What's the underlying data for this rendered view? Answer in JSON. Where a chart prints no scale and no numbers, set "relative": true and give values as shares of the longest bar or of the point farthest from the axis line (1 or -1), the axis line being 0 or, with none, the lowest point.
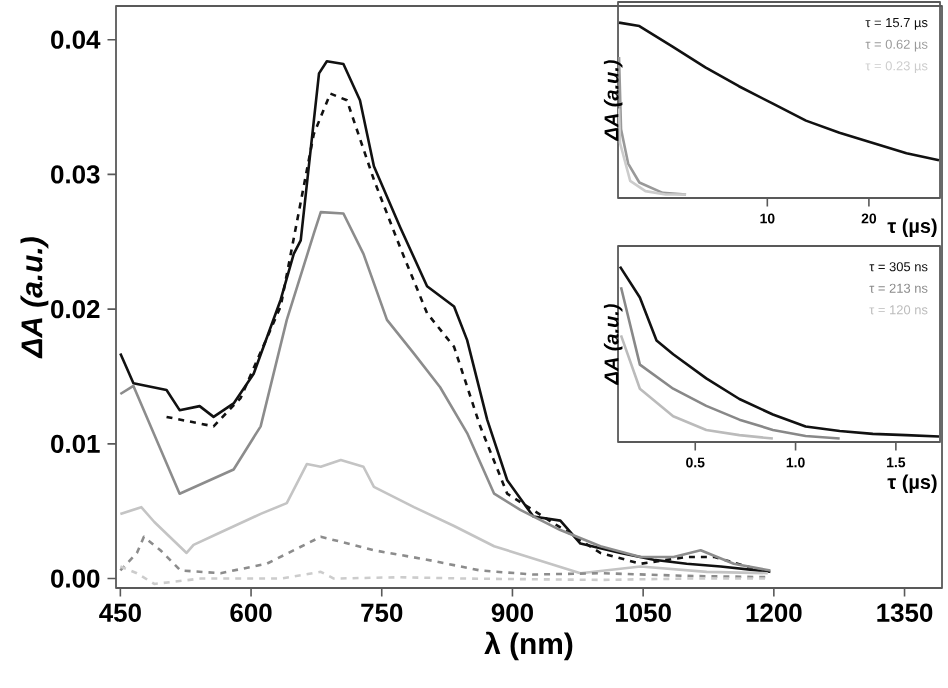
{
  "chart_data": [
    {
      "type": "line",
      "xlabel": "λ (nm)",
      "ylabel": "ΔA (a.u.)",
      "xlim": [
        445,
        1393
      ],
      "ylim": [
        -0.0007,
        0.0425
      ],
      "xticks": [
        450,
        600,
        750,
        900,
        1050,
        1200,
        1350
      ],
      "yticks": [
        {
          "value": 0,
          "label": "0.00"
        },
        {
          "value": 0.01,
          "label": "0.01"
        },
        {
          "value": 0.02,
          "label": "0.02"
        },
        {
          "value": 0.03,
          "label": "0.03"
        },
        {
          "value": 0.04,
          "label": "0.04"
        }
      ],
      "marker": "none",
      "series": [
        {
          "color": "#111111",
          "line_style": "solid",
          "x": [
            450,
            465,
            503,
            518,
            541,
            557,
            580,
            603,
            634,
            649,
            657,
            678,
            687,
            706,
            725,
            741,
            771,
            802,
            833,
            848,
            871,
            894,
            924,
            955,
            978,
            1024,
            1062,
            1100,
            1139,
            1196
          ],
          "values": [
            0.0167,
            0.0145,
            0.014,
            0.0125,
            0.0128,
            0.012,
            0.013,
            0.0152,
            0.0207,
            0.0241,
            0.0251,
            0.0375,
            0.0384,
            0.0382,
            0.0355,
            0.0306,
            0.0261,
            0.0217,
            0.0202,
            0.0177,
            0.0118,
            0.0073,
            0.0046,
            0.0043,
            0.0026,
            0.0019,
            0.0014,
            0.0011,
            0.0009,
            0.0005
          ]
        },
        {
          "color": "#111111",
          "line_style": "dashed",
          "x": [
            503,
            557,
            588,
            634,
            672,
            691,
            710,
            741,
            771,
            802,
            833,
            863,
            894,
            1001,
            1047,
            1100,
            1132,
            1169,
            1196
          ],
          "values": [
            0.012,
            0.0113,
            0.0134,
            0.0202,
            0.033,
            0.036,
            0.0355,
            0.0296,
            0.0246,
            0.0197,
            0.0172,
            0.0113,
            0.0063,
            0.0019,
            0.0011,
            0.0016,
            0.0016,
            0.0009,
            0.0004
          ]
        },
        {
          "color": "#8c8c8c",
          "line_style": "solid",
          "x": [
            450,
            465,
            518,
            549,
            580,
            611,
            641,
            672,
            680,
            706,
            729,
            756,
            787,
            817,
            848,
            879,
            909,
            955,
            1001,
            1047,
            1085,
            1116,
            1154,
            1196
          ],
          "values": [
            0.0137,
            0.0143,
            0.0063,
            0.0072,
            0.0081,
            0.0113,
            0.0192,
            0.0256,
            0.0272,
            0.0271,
            0.0241,
            0.0192,
            0.0167,
            0.0142,
            0.0108,
            0.0063,
            0.0051,
            0.0036,
            0.0024,
            0.0016,
            0.0016,
            0.0021,
            0.0011,
            0.0006
          ]
        },
        {
          "color": "#c4c4c4",
          "line_style": "solid",
          "x": [
            450,
            474,
            489,
            526,
            534,
            564,
            611,
            641,
            664,
            680,
            703,
            729,
            741,
            787,
            833,
            879,
            978,
            1047,
            1123,
            1193
          ],
          "values": [
            0.0048,
            0.0053,
            0.0042,
            0.0019,
            0.0025,
            0.0034,
            0.0048,
            0.0056,
            0.0085,
            0.0083,
            0.0088,
            0.0083,
            0.0068,
            0.0053,
            0.0039,
            0.0024,
            0.0004,
            0.0009,
            0.0005,
            0.0004
          ]
        },
        {
          "color": "#8c8c8c",
          "line_style": "dashed",
          "x": [
            450,
            469,
            477,
            496,
            519,
            565,
            618,
            680,
            705,
            741,
            802,
            863,
            924,
            1001,
            1100,
            1196
          ],
          "values": [
            0.0006,
            0.0019,
            0.0031,
            0.0021,
            0.0006,
            0.0004,
            0.0011,
            0.0031,
            0.0027,
            0.0021,
            0.0014,
            0.0006,
            0.0003,
            0.0004,
            0.0002,
            0.0001
          ]
        },
        {
          "color": "#cccccc",
          "line_style": "dashed",
          "x": [
            450,
            469,
            489,
            542,
            634,
            680,
            695,
            771,
            848,
            1001,
            1100,
            1196
          ],
          "values": [
            0.0009,
            0.0004,
            -0.0004,
            0.0,
            0.0,
            0.0005,
            0.0,
            0.0001,
            0.0,
            -0.0001,
            0.0,
            0.0
          ]
        }
      ]
    },
    {
      "type": "line",
      "xlabel": "τ (µs)",
      "ylabel": "ΔA (a.u.)",
      "relative": true,
      "tick_labels": "x",
      "xlim": [
        -4.7,
        27
      ],
      "xticks": [
        10,
        20
      ],
      "marker": "none",
      "annotations": [
        "τ = 15.7 µs",
        "τ = 0.62 µs",
        "τ = 0.23 µs"
      ],
      "series": [
        {
          "color": "#111111",
          "x": [
            -4.6,
            -2.6,
            0.67,
            3.9,
            7.2,
            10.5,
            13.8,
            17.1,
            20.4,
            23.7,
            26.9
          ],
          "values": [
            1.0,
            0.98,
            0.86,
            0.74,
            0.63,
            0.53,
            0.43,
            0.36,
            0.3,
            0.24,
            0.2
          ]
        },
        {
          "color": "#999999",
          "x": [
            -4.6,
            -4.4,
            -3.7,
            -2.6,
            -0.3,
            2.0
          ],
          "values": [
            0.8,
            0.38,
            0.18,
            0.07,
            0.01,
            0.0
          ]
        },
        {
          "color": "#cccccc",
          "x": [
            -4.6,
            -4.5,
            -3.5,
            -2.0,
            0.0,
            2.0
          ],
          "values": [
            0.5,
            0.3,
            0.08,
            0.02,
            0.0,
            0.0
          ]
        }
      ]
    },
    {
      "type": "line",
      "xlabel": "τ (µs)",
      "ylabel": "ΔA (a.u.)",
      "relative": true,
      "tick_labels": "x",
      "xlim": [
        0.115,
        1.72
      ],
      "xticks": [
        0.5,
        {
          "value": 1.0,
          "label": "1.0"
        },
        1.5
      ],
      "marker": "none",
      "annotations": [
        "τ = 305 ns",
        "τ = 213 ns",
        "τ = 120 ns"
      ],
      "series": [
        {
          "color": "#111111",
          "x": [
            0.125,
            0.224,
            0.307,
            0.39,
            0.555,
            0.72,
            0.887,
            1.05,
            1.22,
            1.385,
            1.55,
            1.715
          ],
          "values": [
            1.0,
            0.82,
            0.57,
            0.49,
            0.35,
            0.23,
            0.14,
            0.07,
            0.044,
            0.027,
            0.02,
            0.012
          ]
        },
        {
          "color": "#888888",
          "x": [
            0.13,
            0.224,
            0.39,
            0.555,
            0.72,
            0.887,
            1.05,
            1.22
          ],
          "values": [
            0.88,
            0.43,
            0.29,
            0.19,
            0.11,
            0.05,
            0.015,
            0.0
          ]
        },
        {
          "color": "#bbbbbb",
          "x": [
            0.13,
            0.224,
            0.39,
            0.555,
            0.72,
            0.887
          ],
          "values": [
            0.6,
            0.29,
            0.13,
            0.05,
            0.02,
            0.0
          ]
        }
      ]
    }
  ]
}
